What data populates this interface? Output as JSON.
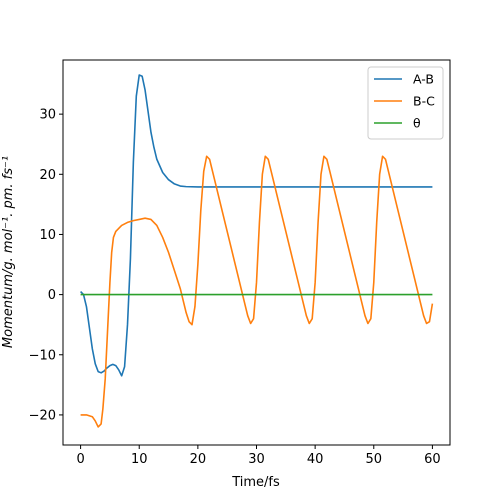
{
  "chart_data": {
    "type": "line",
    "xlabel": "Time/fs",
    "ylabel": "Momentum/g. mol⁻¹. pm. fs⁻¹",
    "xlim": [
      -3,
      63
    ],
    "ylim": [
      -25,
      39
    ],
    "xticks": [
      0,
      10,
      20,
      30,
      40,
      50,
      60
    ],
    "yticks": [
      -20,
      -10,
      0,
      10,
      20,
      30
    ],
    "grid": false,
    "legend_position": "top-right",
    "series": [
      {
        "name": "A-B",
        "color": "#1f77b4",
        "x": [
          0,
          0.5,
          1,
          1.5,
          2,
          2.5,
          3,
          3.5,
          4,
          4.5,
          5,
          5.5,
          6,
          6.5,
          7,
          7.5,
          8,
          8.5,
          9,
          9.5,
          10,
          10.5,
          11,
          11.5,
          12,
          12.5,
          13,
          14,
          15,
          16,
          17,
          18,
          20,
          25,
          30,
          40,
          50,
          60
        ],
        "values": [
          0.5,
          0,
          -2,
          -5.5,
          -9,
          -11.5,
          -12.8,
          -13,
          -12.7,
          -12.2,
          -11.8,
          -11.6,
          -11.8,
          -12.5,
          -13.5,
          -12,
          -5,
          6,
          22,
          33,
          36.5,
          36.3,
          34,
          30.5,
          27,
          24.5,
          22.5,
          20.3,
          19.1,
          18.4,
          18.05,
          17.95,
          17.9,
          17.9,
          17.9,
          17.9,
          17.9,
          17.9
        ]
      },
      {
        "name": "B-C",
        "color": "#ff7f0e",
        "x": [
          0,
          1,
          2,
          2.5,
          3,
          3.5,
          3.8,
          4.2,
          4.6,
          5,
          5.3,
          5.6,
          6,
          6.5,
          7,
          8,
          9,
          10,
          11,
          12,
          13,
          14,
          15,
          16,
          17,
          18,
          18.5,
          19,
          19.5,
          20,
          20.5,
          21,
          21.5,
          22,
          22.5,
          23,
          24,
          25,
          26,
          27,
          28,
          28.5,
          29,
          29.5,
          30,
          30.5,
          31,
          31.5,
          32,
          32.5,
          33,
          34,
          35,
          36,
          37,
          38,
          38.5,
          39,
          39.5,
          40,
          40.5,
          41,
          41.5,
          42,
          42.5,
          43,
          44,
          45,
          46,
          47,
          48,
          48.5,
          49,
          49.5,
          50,
          50.5,
          51,
          51.5,
          52,
          52.5,
          53,
          54,
          55,
          56,
          57,
          58,
          58.5,
          59,
          59.5,
          60
        ],
        "values": [
          -20,
          -20,
          -20.3,
          -21,
          -22,
          -21.5,
          -19,
          -14,
          -6,
          2,
          7,
          9.5,
          10.5,
          11,
          11.5,
          12,
          12.3,
          12.5,
          12.7,
          12.5,
          11.5,
          9.5,
          7,
          4,
          1,
          -3,
          -4.5,
          -5,
          -2,
          5,
          14,
          20.5,
          23,
          22.5,
          20.5,
          18.5,
          14.5,
          10.5,
          6.5,
          2.5,
          -1.5,
          -3.5,
          -4.8,
          -4,
          2,
          12,
          20,
          23,
          22.5,
          20.5,
          18.5,
          14.5,
          10.5,
          6.5,
          2.5,
          -1.5,
          -3.5,
          -4.8,
          -4,
          2,
          12,
          20,
          23,
          22.5,
          20.5,
          18.5,
          14.5,
          10.5,
          6.5,
          2.5,
          -1.5,
          -3.5,
          -4.8,
          -4,
          2,
          12,
          20,
          23,
          22.5,
          20.5,
          18.5,
          14.5,
          10.5,
          6.5,
          2.5,
          -1.5,
          -3.5,
          -4.8,
          -4.5,
          -1.5
        ]
      },
      {
        "name": "θ",
        "color": "#2ca02c",
        "x": [
          0,
          60
        ],
        "values": [
          0,
          0
        ]
      }
    ]
  }
}
